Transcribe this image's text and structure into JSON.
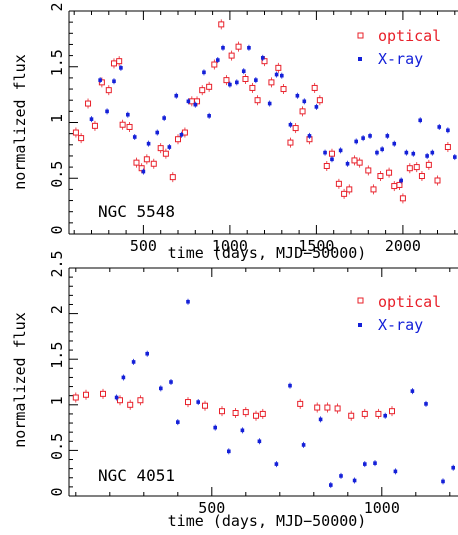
{
  "colors": {
    "optical": "#e8202a",
    "xray": "#1420d8",
    "axes": "#000000"
  },
  "chart_data": [
    {
      "type": "scatter",
      "panel_label": "NGC 5548",
      "xlabel": "time (days, MJD−50000)",
      "ylabel": "normalized flux",
      "xlim": [
        70,
        2330
      ],
      "ylim": [
        0,
        2
      ],
      "xticks": [
        500,
        1000,
        1500,
        2000
      ],
      "yticks": [
        0,
        0.5,
        1,
        1.5,
        2
      ],
      "ytick_labels": [
        "0",
        "0.5",
        "1",
        "1.5",
        "2"
      ],
      "legend_position": "top-right",
      "series": [
        {
          "name": "optical",
          "marker": "open-square",
          "color": "#e8202a",
          "x": [
            110,
            140,
            180,
            220,
            260,
            300,
            330,
            360,
            380,
            420,
            460,
            490,
            520,
            560,
            600,
            630,
            670,
            700,
            740,
            780,
            810,
            840,
            880,
            910,
            950,
            980,
            1010,
            1050,
            1090,
            1130,
            1160,
            1200,
            1240,
            1280,
            1310,
            1350,
            1380,
            1420,
            1460,
            1490,
            1520,
            1560,
            1590,
            1630,
            1660,
            1690,
            1720,
            1750,
            1800,
            1830,
            1870,
            1920,
            1950,
            1980,
            2000,
            2040,
            2080,
            2110,
            2150,
            2200,
            2260
          ],
          "y": [
            0.91,
            0.86,
            1.17,
            0.97,
            1.36,
            1.29,
            1.53,
            1.55,
            0.98,
            0.96,
            0.64,
            0.59,
            0.67,
            0.63,
            0.77,
            0.72,
            0.51,
            0.85,
            0.91,
            1.19,
            1.19,
            1.29,
            1.32,
            1.52,
            1.88,
            1.38,
            1.6,
            1.68,
            1.39,
            1.31,
            1.2,
            1.55,
            1.36,
            1.49,
            1.3,
            0.82,
            0.95,
            1.1,
            0.85,
            1.31,
            1.2,
            0.61,
            0.72,
            0.45,
            0.36,
            0.4,
            0.66,
            0.64,
            0.57,
            0.4,
            0.52,
            0.55,
            0.43,
            0.44,
            0.32,
            0.59,
            0.6,
            0.52,
            0.62,
            0.48,
            0.78
          ]
        },
        {
          "name": "X-ray",
          "marker": "dot",
          "color": "#1420d8",
          "x": [
            200,
            250,
            290,
            330,
            370,
            410,
            450,
            500,
            530,
            580,
            620,
            650,
            690,
            720,
            760,
            800,
            850,
            880,
            930,
            960,
            1000,
            1040,
            1080,
            1110,
            1150,
            1190,
            1230,
            1270,
            1300,
            1350,
            1390,
            1430,
            1460,
            1500,
            1550,
            1590,
            1640,
            1680,
            1730,
            1770,
            1810,
            1850,
            1880,
            1910,
            1950,
            1990,
            2020,
            2060,
            2100,
            2140,
            2170,
            2210,
            2260,
            2300
          ],
          "y": [
            1.03,
            1.38,
            1.1,
            1.37,
            1.49,
            1.07,
            0.87,
            0.56,
            0.81,
            0.91,
            1.04,
            0.78,
            1.24,
            0.89,
            1.19,
            1.16,
            1.45,
            1.06,
            1.56,
            1.67,
            1.34,
            1.36,
            1.46,
            1.67,
            1.38,
            1.58,
            1.17,
            1.43,
            1.42,
            0.98,
            1.24,
            1.19,
            0.88,
            1.14,
            0.73,
            0.67,
            0.75,
            0.63,
            0.83,
            0.86,
            0.88,
            0.73,
            0.76,
            0.88,
            0.81,
            0.48,
            0.73,
            0.72,
            1.02,
            0.7,
            0.73,
            0.96,
            0.93,
            0.69
          ]
        }
      ]
    },
    {
      "type": "scatter",
      "panel_label": "NGC 4051",
      "xlabel": "time (days, MJD−50000)",
      "ylabel": "normalized flux",
      "xlim": [
        80,
        1230
      ],
      "ylim": [
        0,
        2.5
      ],
      "xticks": [
        500,
        1000
      ],
      "yticks": [
        0,
        0.5,
        1,
        1.5,
        2,
        2.5
      ],
      "ytick_labels": [
        "0",
        "0.5",
        "1",
        "1.5",
        "2",
        "2.5"
      ],
      "legend_position": "top-right",
      "series": [
        {
          "name": "optical",
          "marker": "open-square",
          "color": "#e8202a",
          "x": [
            100,
            130,
            180,
            230,
            260,
            290,
            430,
            480,
            530,
            570,
            600,
            630,
            650,
            760,
            810,
            840,
            870,
            910,
            950,
            990,
            1030
          ],
          "y": [
            1.08,
            1.11,
            1.12,
            1.05,
            1.0,
            1.05,
            1.03,
            0.99,
            0.93,
            0.91,
            0.92,
            0.88,
            0.9,
            1.01,
            0.97,
            0.97,
            0.96,
            0.88,
            0.9,
            0.9,
            0.93
          ]
        },
        {
          "name": "X-ray",
          "marker": "dot",
          "color": "#1420d8",
          "x": [
            220,
            240,
            270,
            310,
            350,
            380,
            400,
            430,
            460,
            510,
            550,
            590,
            640,
            690,
            730,
            770,
            820,
            850,
            880,
            920,
            950,
            980,
            1010,
            1040,
            1090,
            1130,
            1180,
            1210
          ],
          "y": [
            1.08,
            1.3,
            1.47,
            1.56,
            1.18,
            1.25,
            0.81,
            2.13,
            1.03,
            0.75,
            0.49,
            0.72,
            0.6,
            0.35,
            1.21,
            0.56,
            0.84,
            0.12,
            0.22,
            0.17,
            0.35,
            0.36,
            0.88,
            0.27,
            1.15,
            1.01,
            0.16,
            0.31
          ]
        }
      ]
    }
  ],
  "legend": {
    "optical_label": "optical",
    "xray_label": "X-ray"
  }
}
